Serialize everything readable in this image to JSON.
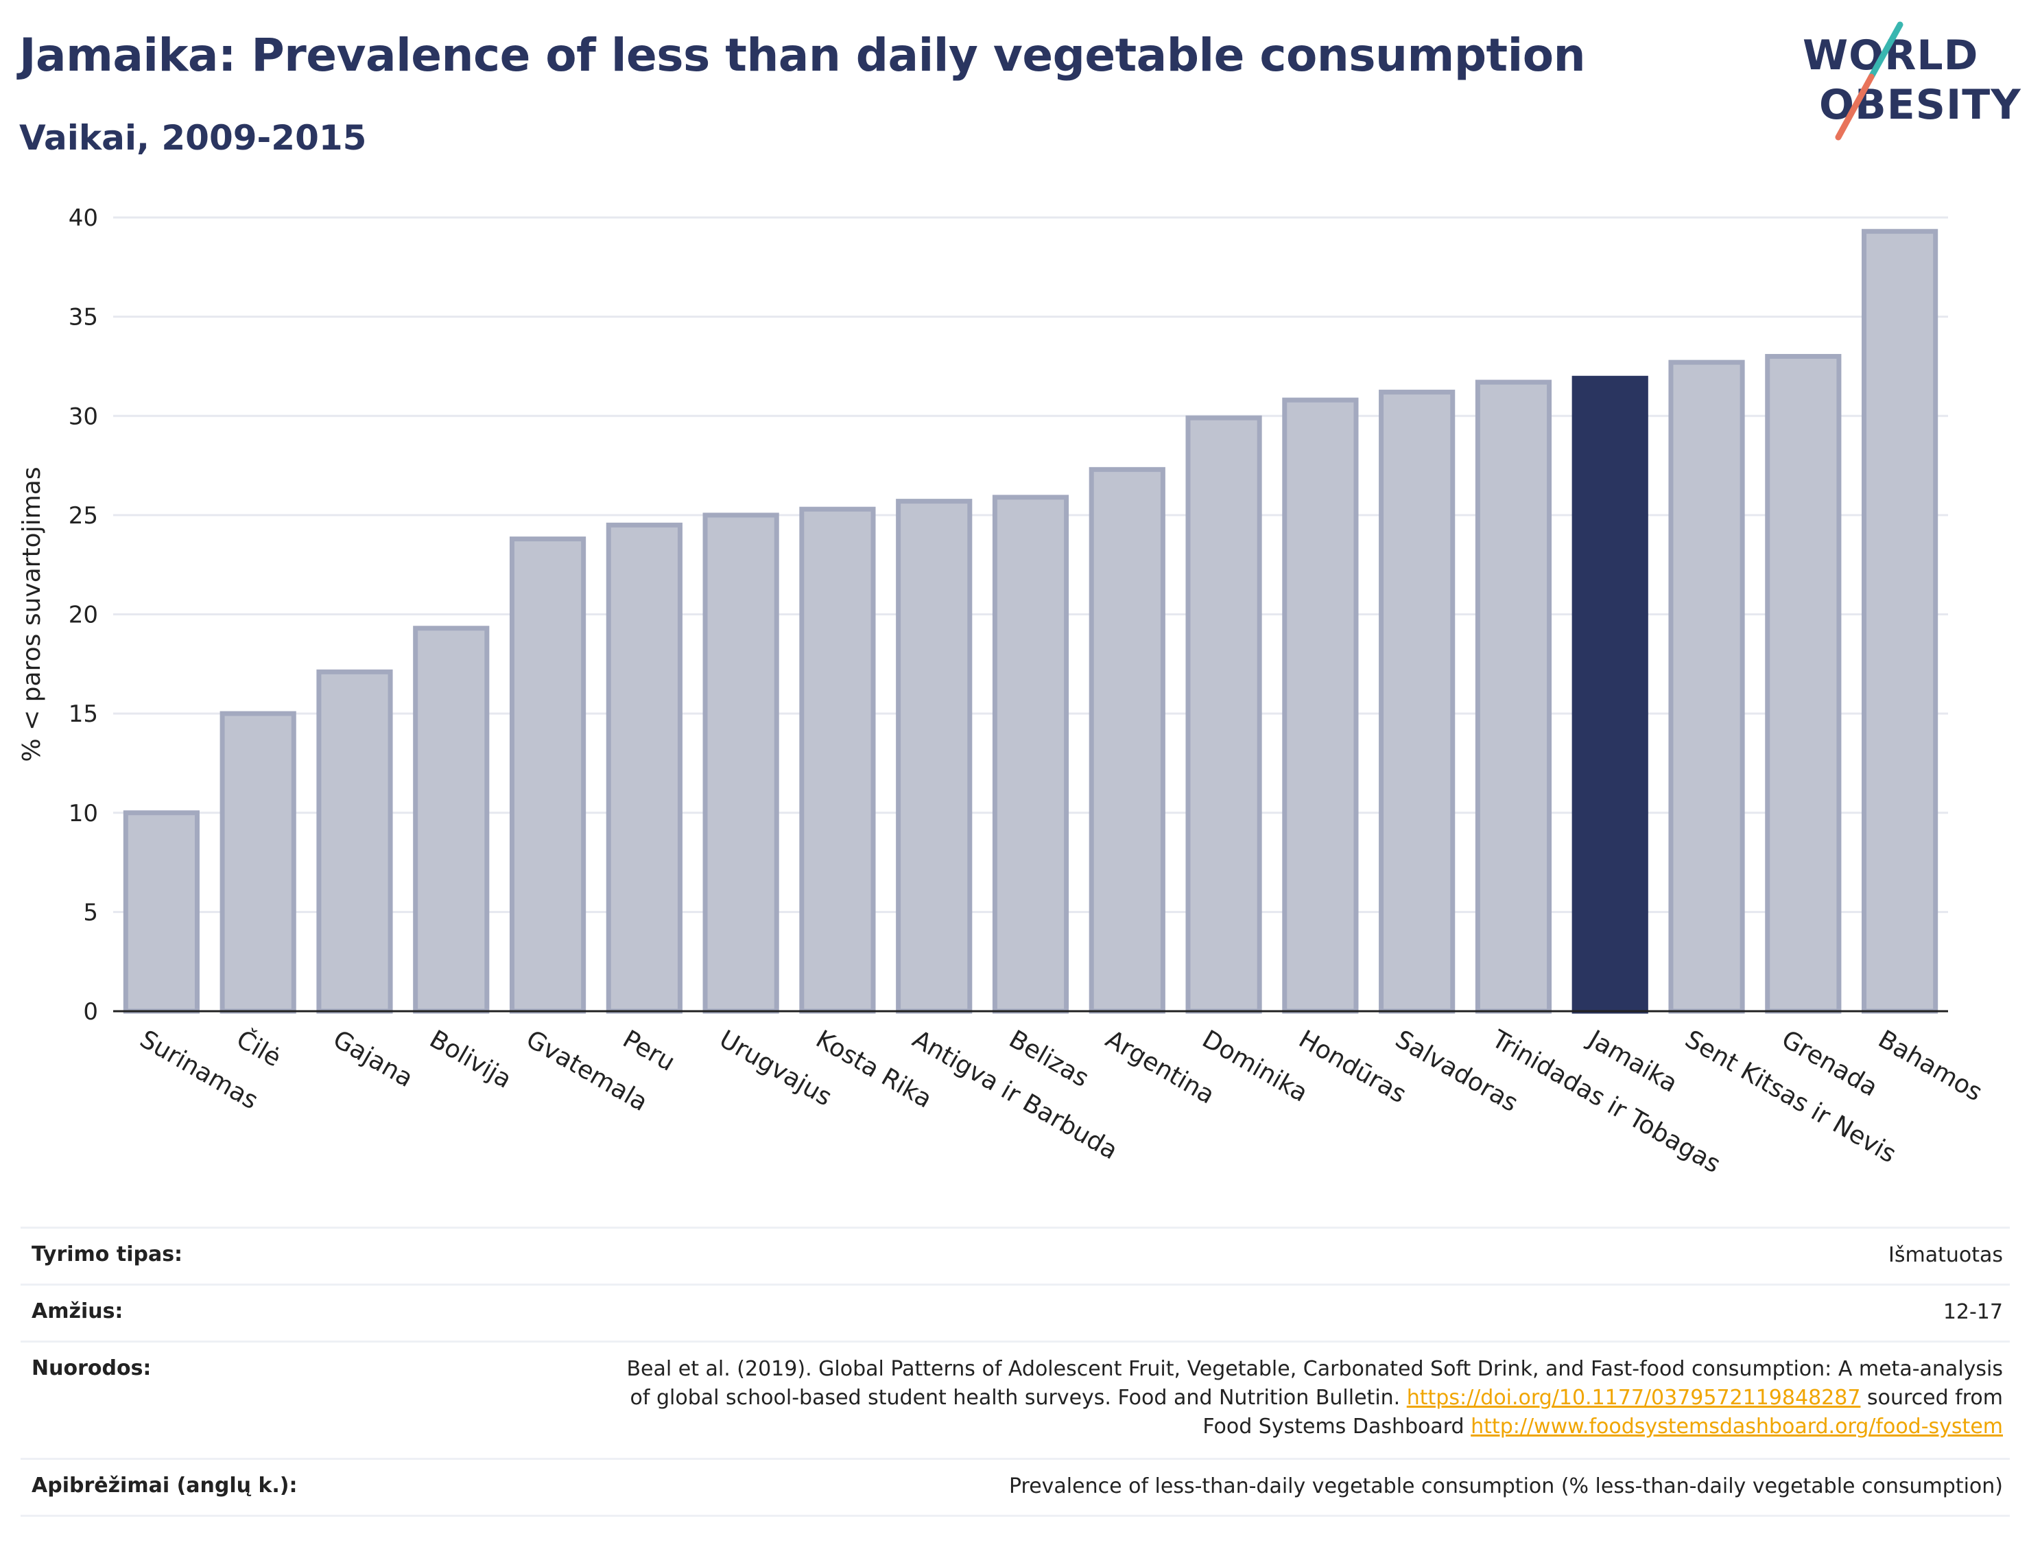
{
  "header": {
    "title": "Jamaika: Prevalence of less than daily vegetable consumption",
    "subtitle": "Vaikai, 2009-2015"
  },
  "logo": {
    "line1": "WORLD",
    "line2": "OBESITY",
    "colors": {
      "text": "#2a3560",
      "slash_top": "#39b6b0",
      "slash_bottom": "#e8735a"
    }
  },
  "colors": {
    "bar_default_fill": "#bfc3d0",
    "bar_default_stroke": "#a3a9bf",
    "bar_highlight": "#2a3560",
    "grid": "#e6e8ef",
    "axis": "#222222",
    "link": "#f0a500"
  },
  "chart_data": {
    "type": "bar",
    "title": "",
    "xlabel": "",
    "ylabel": "% < paros suvartojimas",
    "ylim": [
      0,
      40
    ],
    "yticks": [
      0,
      5,
      10,
      15,
      20,
      25,
      30,
      35,
      40
    ],
    "grid": true,
    "highlight": "Jamaika",
    "categories": [
      "Surinamas",
      "Čilė",
      "Gajana",
      "Bolivija",
      "Gvatemala",
      "Peru",
      "Urugvajus",
      "Kosta Rika",
      "Antigva ir Barbuda",
      "Belizas",
      "Argentina",
      "Dominika",
      "Hondūras",
      "Salvadoras",
      "Trinidadas ir Tobagas",
      "Jamaika",
      "Sent Kitsas ir Nevis",
      "Grenada",
      "Bahamos"
    ],
    "values": [
      10.0,
      15.0,
      17.1,
      19.3,
      23.8,
      24.5,
      25.0,
      25.3,
      25.7,
      25.9,
      27.3,
      29.9,
      30.8,
      31.2,
      31.7,
      31.9,
      32.7,
      33.0,
      39.3
    ]
  },
  "meta": {
    "rows": [
      {
        "label": "Tyrimo tipas:",
        "value": "Išmatuotas"
      },
      {
        "label": "Amžius:",
        "value": "12-17"
      },
      {
        "label": "Nuorodos:",
        "value_line1": "Beal et al. (2019). Global Patterns of Adolescent Fruit, Vegetable, Carbonated Soft Drink, and Fast-food consumption: A meta-analysis",
        "value_line2_text": "of global school-based student health surveys. Food and Nutrition Bulletin.",
        "value_line2_link": "https://doi.org/10.1177/0379572119848287",
        "value_line2_tail": "sourced from",
        "value_line3_text": "Food Systems Dashboard",
        "value_line3_link": "http://www.foodsystemsdashboard.org/food-system"
      },
      {
        "label": "Apibrėžimai (anglų k.):",
        "value": "Prevalence of less-than-daily vegetable consumption (% less-than-daily vegetable consumption)"
      }
    ]
  }
}
